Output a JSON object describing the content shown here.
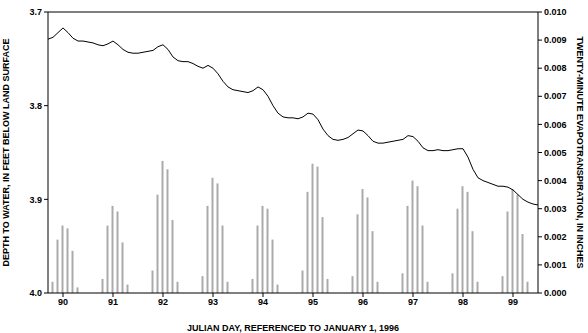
{
  "chart_data": {
    "type": "line",
    "x_label": "JULIAN DAY, REFERENCED TO JANUARY 1, 1996",
    "y_label": "DEPTH TO WATER, IN FEET BELOW LAND SURFACE",
    "y2_label": "TWENTY-MINUTE EVAPOTRANSPIRATION, IN INCHES",
    "x": [
      89.7,
      89.8,
      89.9,
      90.0,
      90.1,
      90.2,
      90.3,
      90.4,
      90.5,
      90.6,
      90.7,
      90.8,
      90.9,
      91.0,
      91.1,
      91.2,
      91.3,
      91.4,
      91.5,
      91.6,
      91.7,
      91.8,
      91.9,
      92.0,
      92.1,
      92.2,
      92.3,
      92.4,
      92.5,
      92.6,
      92.7,
      92.8,
      92.9,
      93.0,
      93.1,
      93.2,
      93.3,
      93.4,
      93.5,
      93.6,
      93.7,
      93.8,
      93.9,
      94.0,
      94.1,
      94.2,
      94.3,
      94.4,
      94.5,
      94.6,
      94.7,
      94.8,
      94.9,
      95.0,
      95.1,
      95.2,
      95.3,
      95.4,
      95.5,
      95.6,
      95.7,
      95.8,
      95.9,
      96.0,
      96.1,
      96.2,
      96.3,
      96.4,
      96.5,
      96.6,
      96.7,
      96.8,
      96.9,
      97.0,
      97.1,
      97.2,
      97.3,
      97.4,
      97.5,
      97.6,
      97.7,
      97.8,
      97.9,
      98.0,
      98.1,
      98.2,
      98.3,
      98.4,
      98.5,
      98.6,
      98.7,
      98.8,
      98.9,
      99.0,
      99.1,
      99.2,
      99.3,
      99.4,
      99.5
    ],
    "xlim": [
      89.7,
      99.5
    ],
    "xticks": [
      90,
      91,
      92,
      93,
      94,
      95,
      96,
      97,
      98,
      99
    ],
    "ylim": [
      4.0,
      3.7
    ],
    "yticks": [
      3.7,
      3.8,
      3.9,
      {
        "value": 4.0,
        "label": "4.0"
      }
    ],
    "y2lim": [
      0,
      0.01
    ],
    "y2ticks": [
      {
        "value": 0,
        "label": "0.000"
      },
      0.001,
      0.002,
      0.003,
      0.004,
      0.005,
      0.006,
      0.007,
      0.008,
      0.009,
      {
        "value": 0.01,
        "label": "0.010"
      }
    ],
    "series": [
      {
        "type": "line",
        "color": "#000000",
        "values": [
          3.729,
          3.727,
          3.722,
          3.717,
          3.722,
          3.728,
          3.731,
          3.731,
          3.732,
          3.733,
          3.735,
          3.736,
          3.734,
          3.731,
          3.735,
          3.74,
          3.743,
          3.744,
          3.744,
          3.743,
          3.742,
          3.741,
          3.737,
          3.735,
          3.74,
          3.748,
          3.752,
          3.753,
          3.753,
          3.755,
          3.758,
          3.76,
          3.757,
          3.76,
          3.766,
          3.774,
          3.78,
          3.783,
          3.784,
          3.785,
          3.786,
          3.784,
          3.78,
          3.783,
          3.79,
          3.8,
          3.808,
          3.812,
          3.813,
          3.813,
          3.814,
          3.812,
          3.808,
          3.809,
          3.815,
          3.825,
          3.832,
          3.836,
          3.837,
          3.836,
          3.834,
          3.83,
          3.826,
          3.827,
          3.832,
          3.838,
          3.84,
          3.84,
          3.839,
          3.838,
          3.837,
          3.836,
          3.832,
          3.833,
          3.838,
          3.845,
          3.848,
          3.848,
          3.847,
          3.848,
          3.848,
          3.847,
          3.846,
          3.846,
          3.855,
          3.868,
          3.877,
          3.88,
          3.882,
          3.884,
          3.886,
          3.886,
          3.887,
          3.89,
          3.895,
          3.9,
          3.903,
          3.905,
          3.906
        ]
      },
      {
        "type": "bar",
        "axis": "y2",
        "color": "#aaaaaa",
        "values": [
          0,
          0.0004,
          0.0019,
          0.0024,
          0.0023,
          0.0015,
          0.0002,
          0,
          0,
          0,
          0,
          0.0005,
          0.0024,
          0.0031,
          0.0029,
          0.0018,
          0.0003,
          0,
          0,
          0,
          0,
          0.0008,
          0.0035,
          0.0047,
          0.0044,
          0.0026,
          0.0004,
          0,
          0,
          0,
          0,
          0.0006,
          0.0031,
          0.0041,
          0.0039,
          0.0024,
          0.0004,
          0,
          0,
          0,
          0,
          0.0005,
          0.0024,
          0.0031,
          0.003,
          0.0019,
          0.0003,
          0,
          0,
          0,
          0,
          0.0008,
          0.0036,
          0.0046,
          0.0045,
          0.0027,
          0.0005,
          0,
          0,
          0,
          0,
          0.0006,
          0.0028,
          0.0037,
          0.0034,
          0.0022,
          0.0004,
          0,
          0,
          0,
          0,
          0.0007,
          0.0031,
          0.004,
          0.0038,
          0.0024,
          0.0004,
          0,
          0,
          0,
          0,
          0.0007,
          0.003,
          0.0038,
          0.0036,
          0.0022,
          0.0004,
          0,
          0,
          0,
          0,
          0.0006,
          0.0029,
          0.0037,
          0.0035,
          0.0021,
          0.0004,
          0,
          0
        ]
      }
    ]
  }
}
